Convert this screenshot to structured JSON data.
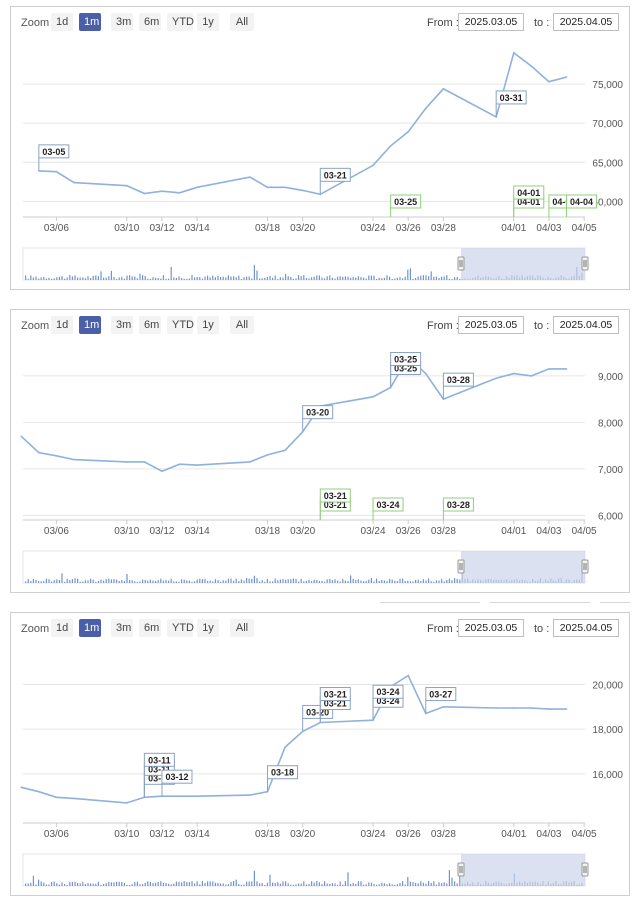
{
  "toolbar": {
    "zoom_label": "Zoom",
    "buttons": [
      "1d",
      "1m",
      "3m",
      "6m",
      "YTD",
      "1y",
      "All"
    ],
    "active": "1m",
    "from_label": "From :",
    "to_label": "to :",
    "from_value": "2025.03.05",
    "to_value": "2025.04.05"
  },
  "colors": {
    "line": "#8eb1dd",
    "flag_border_blue": "#8aa3c6",
    "flag_border_green": "#8fd07a",
    "navigator_mask": "#ccd4ea",
    "active_button": "#4a5fa8"
  },
  "chart_data": [
    {
      "type": "line",
      "x_ticks": [
        "03/06",
        "03/10",
        "03/12",
        "03/14",
        "03/18",
        "03/20",
        "03/24",
        "03/26",
        "03/28",
        "04/01",
        "04/03",
        "04/05"
      ],
      "y_ticks": [
        "60,000",
        "65,000",
        "70,000",
        "75,000"
      ],
      "ylim": [
        58000,
        80000
      ],
      "x": [
        "03/05",
        "03/06",
        "03/07",
        "03/10",
        "03/11",
        "03/12",
        "03/13",
        "03/14",
        "03/17",
        "03/18",
        "03/19",
        "03/20",
        "03/21",
        "03/24",
        "03/25",
        "03/26",
        "03/27",
        "03/28",
        "03/31",
        "04/01",
        "04/02",
        "04/03",
        "04/04"
      ],
      "values": [
        63900,
        63800,
        62400,
        62000,
        61000,
        61300,
        61100,
        61800,
        63100,
        61800,
        61800,
        61400,
        60900,
        64600,
        67100,
        68900,
        71900,
        74400,
        70800,
        79000,
        77300,
        75300,
        75900
      ],
      "flags": [
        {
          "text": "03-05",
          "x": "03/05",
          "on": "series"
        },
        {
          "text": "03-21",
          "x": "03/21",
          "on": "series"
        },
        {
          "text": "03-31",
          "x": "03/31",
          "on": "series"
        },
        {
          "text": "03-25",
          "x": "03/25",
          "on": "axis"
        },
        {
          "text": "04-01",
          "x": "04/01",
          "on": "axis"
        },
        {
          "text": "04-01",
          "x": "04/01",
          "on": "axis"
        },
        {
          "text": "04-03",
          "x": "04/03",
          "on": "axis"
        },
        {
          "text": "04-04",
          "x": "04/04",
          "on": "axis"
        }
      ]
    },
    {
      "type": "line",
      "x_ticks": [
        "03/06",
        "03/10",
        "03/12",
        "03/14",
        "03/18",
        "03/20",
        "03/24",
        "03/26",
        "03/28",
        "04/01",
        "04/03",
        "04/05"
      ],
      "y_ticks": [
        "6,000",
        "7,000",
        "8,000",
        "9,000"
      ],
      "ylim": [
        5900,
        9600
      ],
      "x": [
        "03/04",
        "03/05",
        "03/06",
        "03/07",
        "03/10",
        "03/11",
        "03/12",
        "03/13",
        "03/14",
        "03/17",
        "03/18",
        "03/19",
        "03/20",
        "03/21",
        "03/24",
        "03/25",
        "03/26",
        "03/27",
        "03/28",
        "03/31",
        "04/01",
        "04/02",
        "04/03",
        "04/04"
      ],
      "values": [
        7700,
        7350,
        7280,
        7200,
        7150,
        7150,
        6950,
        7100,
        7080,
        7150,
        7300,
        7400,
        7800,
        8350,
        8550,
        8750,
        9400,
        9050,
        8500,
        8950,
        9050,
        9000,
        9150,
        9150
      ],
      "flags": [
        {
          "text": "03-20",
          "x": "03/20",
          "on": "series"
        },
        {
          "text": "03-25",
          "x": "03/25",
          "on": "series"
        },
        {
          "text": "03-25",
          "x": "03/25",
          "on": "series"
        },
        {
          "text": "03-28",
          "x": "03/28",
          "on": "series"
        },
        {
          "text": "03-21",
          "x": "03/21",
          "on": "axis"
        },
        {
          "text": "03-21",
          "x": "03/21",
          "on": "axis"
        },
        {
          "text": "03-24",
          "x": "03/24",
          "on": "axis"
        },
        {
          "text": "03-28",
          "x": "03/28",
          "on": "axis"
        }
      ]
    },
    {
      "type": "line",
      "x_ticks": [
        "03/06",
        "03/10",
        "03/12",
        "03/14",
        "03/18",
        "03/20",
        "03/24",
        "03/26",
        "03/28",
        "04/01",
        "04/03",
        "04/05"
      ],
      "y_ticks": [
        "16,000",
        "18,000",
        "20,000"
      ],
      "ylim": [
        13800,
        21500
      ],
      "x": [
        "03/04",
        "03/05",
        "03/06",
        "03/07",
        "03/10",
        "03/11",
        "03/12",
        "03/13",
        "03/14",
        "03/17",
        "03/18",
        "03/19",
        "03/20",
        "03/21",
        "03/24",
        "03/25",
        "03/26",
        "03/27",
        "03/28",
        "03/31",
        "04/01",
        "04/02",
        "04/03",
        "04/04"
      ],
      "values": [
        15400,
        15200,
        14950,
        14900,
        14700,
        14950,
        15000,
        15000,
        15000,
        15050,
        15200,
        17200,
        17900,
        18300,
        18400,
        19900,
        20400,
        18700,
        19000,
        18950,
        18950,
        18950,
        18900,
        18900
      ],
      "flags": [
        {
          "text": "03-11",
          "x": "03/11",
          "on": "series"
        },
        {
          "text": "03-11",
          "x": "03/11",
          "on": "series"
        },
        {
          "text": "03-11",
          "x": "03/11",
          "on": "series"
        },
        {
          "text": "03-12",
          "x": "03/12",
          "on": "series"
        },
        {
          "text": "03-18",
          "x": "03/18",
          "on": "series"
        },
        {
          "text": "03-20",
          "x": "03/20",
          "on": "series"
        },
        {
          "text": "03-21",
          "x": "03/21",
          "on": "series"
        },
        {
          "text": "03-21",
          "x": "03/21",
          "on": "series"
        },
        {
          "text": "03-24",
          "x": "03/24",
          "on": "series"
        },
        {
          "text": "03-24",
          "x": "03/24",
          "on": "series"
        },
        {
          "text": "03-27",
          "x": "03/27",
          "on": "series"
        }
      ]
    }
  ]
}
